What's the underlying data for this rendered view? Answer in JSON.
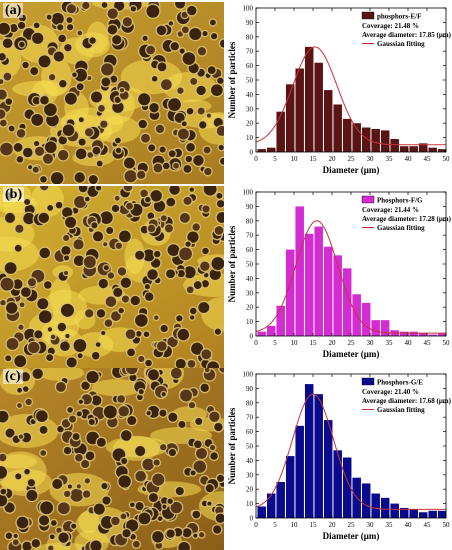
{
  "panels": [
    {
      "label": "(a)"
    },
    {
      "label": "(b)"
    },
    {
      "label": "(c)"
    }
  ],
  "chart_data": [
    {
      "type": "bar",
      "panel": "(a)",
      "xlabel": "Diameter (μm)",
      "ylabel": "Number of particles",
      "xlim": [
        0,
        50
      ],
      "ylim": [
        0,
        100
      ],
      "xticks": [
        0,
        5,
        10,
        15,
        20,
        25,
        30,
        35,
        40,
        45,
        50
      ],
      "yticks": [
        0,
        10,
        20,
        30,
        40,
        50,
        60,
        70,
        80,
        90,
        100
      ],
      "bar_color": "#5a1414",
      "fit_color": "#c8323c",
      "legend_position": "top-right",
      "series": [
        {
          "name": "phosphors-E/F",
          "x": [
            1.5,
            4,
            6.5,
            9,
            11.5,
            14,
            16.5,
            19,
            21.5,
            24,
            26.5,
            29,
            31.5,
            34,
            36.5,
            39,
            41.5,
            44,
            46.5,
            49
          ],
          "values": [
            2,
            3,
            28,
            47,
            58,
            73,
            62,
            43,
            33,
            23,
            20,
            17,
            16,
            15,
            9,
            4,
            4,
            6,
            3,
            2
          ]
        }
      ],
      "annotations": [
        "Coverage: 21.48 %",
        "Average diameter: 17.85 (μm)"
      ],
      "fit": {
        "name": "Gaussian fitting",
        "center": 15.5,
        "amplitude": 68,
        "sigma": 5.8,
        "offset": 5
      }
    },
    {
      "type": "bar",
      "panel": "(b)",
      "xlabel": "Diameter (μm)",
      "ylabel": "Number of particles",
      "xlim": [
        0,
        50
      ],
      "ylim": [
        0,
        100
      ],
      "xticks": [
        0,
        5,
        10,
        15,
        20,
        25,
        30,
        35,
        40,
        45,
        50
      ],
      "yticks": [
        0,
        10,
        20,
        30,
        40,
        50,
        60,
        70,
        80,
        90,
        100
      ],
      "bar_color": "#d22cd2",
      "fit_color": "#c8323c",
      "legend_position": "top-right",
      "series": [
        {
          "name": "Phosphors-F/G",
          "x": [
            1.5,
            4,
            6.5,
            9,
            11.5,
            14,
            16.5,
            19,
            21.5,
            24,
            26.5,
            29,
            31.5,
            34,
            36.5,
            39,
            41.5,
            44,
            46.5,
            49
          ],
          "values": [
            3,
            7,
            21,
            60,
            90,
            71,
            76,
            62,
            56,
            47,
            29,
            23,
            11,
            11,
            4,
            3,
            3,
            2,
            1,
            2
          ]
        }
      ],
      "annotations": [
        "Coverage: 21.44 %",
        "Average diameter: 17.28 (μm)"
      ],
      "fit": {
        "name": "Gaussian fitting",
        "center": 16,
        "amplitude": 78,
        "sigma": 5.5,
        "offset": 2
      }
    },
    {
      "type": "bar",
      "panel": "(c)",
      "xlabel": "Diameter (μm)",
      "ylabel": "Number of particles",
      "xlim": [
        0,
        50
      ],
      "ylim": [
        0,
        100
      ],
      "xticks": [
        0,
        5,
        10,
        15,
        20,
        25,
        30,
        35,
        40,
        45,
        50
      ],
      "yticks": [
        0,
        10,
        20,
        30,
        40,
        50,
        60,
        70,
        80,
        90,
        100
      ],
      "bar_color": "#0a0a8c",
      "fit_color": "#c8323c",
      "legend_position": "top-right",
      "series": [
        {
          "name": "Phosphors-G/E",
          "x": [
            1.5,
            4,
            6.5,
            9,
            11.5,
            14,
            16.5,
            19,
            21.5,
            24,
            26.5,
            29,
            31.5,
            34,
            36.5,
            39,
            41.5,
            44,
            46.5,
            49
          ],
          "values": [
            8,
            17,
            25,
            43,
            64,
            93,
            86,
            68,
            47,
            42,
            28,
            24,
            17,
            14,
            10,
            7,
            6,
            4,
            5,
            5
          ]
        }
      ],
      "annotations": [
        "Coverage: 21.40 %",
        "Average diameter: 17.68 (μm)"
      ],
      "fit": {
        "name": "Gaussian fitting",
        "center": 15,
        "amplitude": 80,
        "sigma": 5.4,
        "offset": 6
      }
    }
  ]
}
